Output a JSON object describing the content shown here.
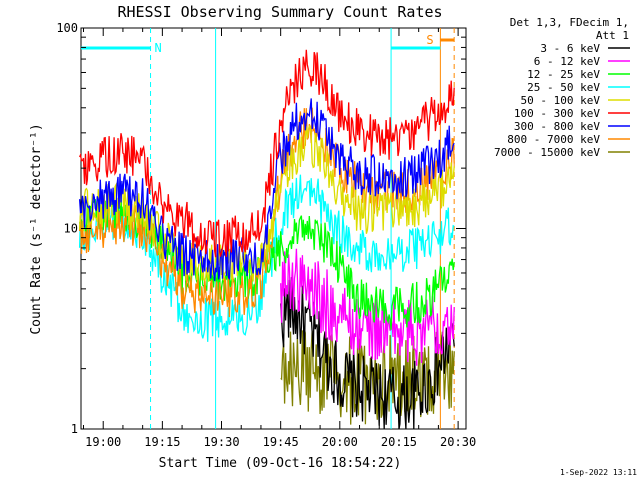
{
  "chart_data": {
    "type": "line",
    "title": "RHESSI Observing Summary Count Rates",
    "xlabel": "Start Time (09-Oct-16 18:54:22)",
    "ylabel": "Count Rate (s⁻¹ detector⁻¹)",
    "yscale": "log",
    "ylim": [
      1,
      100
    ],
    "xlim": [
      "18:54:22",
      "20:32:00"
    ],
    "x_ticks": [
      "19:00",
      "19:15",
      "19:30",
      "19:45",
      "20:00",
      "20:15",
      "20:30"
    ],
    "y_ticks": [
      "1",
      "10",
      "100"
    ],
    "legend": {
      "position": "top-right outside",
      "header_1": "Det 1,3, FDecim 1,",
      "header_2": "Att 1"
    },
    "series": [
      {
        "name": "3 - 6 keV",
        "color": "#000000",
        "x": [
          "19:45",
          "19:47",
          "19:50",
          "19:53",
          "19:56",
          "20:00",
          "20:05",
          "20:10",
          "20:15",
          "20:20",
          "20:25",
          "20:29"
        ],
        "values": [
          3.5,
          4.0,
          3.6,
          3.0,
          2.4,
          1.8,
          1.6,
          1.5,
          1.4,
          1.5,
          2.0,
          3.0
        ]
      },
      {
        "name": "6 - 12 keV",
        "color": "#ff00ff",
        "x": [
          "19:45",
          "19:48",
          "19:52",
          "19:56",
          "20:00",
          "20:05",
          "20:10",
          "20:15",
          "20:20",
          "20:25",
          "20:29"
        ],
        "values": [
          5.0,
          5.8,
          5.2,
          4.3,
          3.7,
          3.2,
          3.1,
          3.0,
          3.1,
          3.4,
          4.0
        ]
      },
      {
        "name": "12 - 25 keV",
        "color": "#00ff00",
        "x": [
          "18:54",
          "19:00",
          "19:05",
          "19:10",
          "19:15",
          "19:20",
          "19:25",
          "19:30",
          "19:35",
          "19:40",
          "19:45",
          "19:48",
          "19:52",
          "19:56",
          "20:00",
          "20:05",
          "20:10",
          "20:15",
          "20:20",
          "20:25",
          "20:29"
        ],
        "values": [
          11,
          12,
          12,
          11,
          8.5,
          6.0,
          5.5,
          5.5,
          5.5,
          6.0,
          8.0,
          9.5,
          10.5,
          8.5,
          6.5,
          4.5,
          4.0,
          4.0,
          4.3,
          5.0,
          6.0
        ]
      },
      {
        "name": "25 - 50 keV",
        "color": "#00ffff",
        "x": [
          "18:54",
          "19:00",
          "19:05",
          "19:10",
          "19:15",
          "19:20",
          "19:25",
          "19:30",
          "19:35",
          "19:40",
          "19:45",
          "19:48",
          "19:52",
          "19:56",
          "20:00",
          "20:05",
          "20:10",
          "20:15",
          "20:20",
          "20:25",
          "20:29"
        ],
        "values": [
          9,
          11,
          11,
          10,
          6,
          4,
          3.5,
          3.5,
          3.6,
          4.5,
          11,
          14,
          16,
          13,
          9.5,
          8,
          7.5,
          7.5,
          8,
          9,
          11
        ]
      },
      {
        "name": "50 - 100 keV",
        "color": "#dddd00",
        "x": [
          "18:54",
          "19:00",
          "19:05",
          "19:10",
          "19:15",
          "19:20",
          "19:25",
          "19:30",
          "19:35",
          "19:40",
          "19:45",
          "19:48",
          "19:52",
          "19:56",
          "20:00",
          "20:05",
          "20:10",
          "20:15",
          "20:20",
          "20:25",
          "20:29"
        ],
        "values": [
          12,
          13,
          13,
          12,
          9,
          7,
          6.5,
          6.5,
          6.5,
          7,
          15,
          22,
          28,
          22,
          15,
          12,
          12,
          12,
          13,
          15,
          18
        ]
      },
      {
        "name": "100 - 300 keV",
        "color": "#ff0000",
        "x": [
          "18:54",
          "19:00",
          "19:05",
          "19:10",
          "19:15",
          "19:20",
          "19:25",
          "19:30",
          "19:35",
          "19:40",
          "19:45",
          "19:48",
          "19:52",
          "19:56",
          "20:00",
          "20:05",
          "20:10",
          "20:15",
          "20:20",
          "20:25",
          "20:29"
        ],
        "values": [
          18,
          22,
          24,
          22,
          13,
          11,
          9.5,
          9.0,
          9.0,
          10,
          35,
          52,
          68,
          55,
          38,
          30,
          28,
          28,
          31,
          38,
          50
        ]
      },
      {
        "name": "300 - 800 keV",
        "color": "#0000ff",
        "x": [
          "18:54",
          "19:00",
          "19:05",
          "19:10",
          "19:15",
          "19:20",
          "19:25",
          "19:30",
          "19:35",
          "19:40",
          "19:45",
          "19:48",
          "19:52",
          "19:56",
          "20:00",
          "20:05",
          "20:10",
          "20:15",
          "20:20",
          "20:25",
          "20:29"
        ],
        "values": [
          12,
          14,
          15,
          14,
          9,
          7.5,
          7.0,
          7.0,
          7.0,
          7.5,
          22,
          32,
          38,
          32,
          23,
          19,
          18,
          18,
          19,
          22,
          27
        ]
      },
      {
        "name": "800 - 7000 keV",
        "color": "#ff8800",
        "x": [
          "18:54",
          "19:00",
          "19:05",
          "19:10",
          "19:15",
          "19:20",
          "19:25",
          "19:30",
          "19:35",
          "19:40",
          "19:45",
          "19:48",
          "19:52",
          "19:56",
          "20:00",
          "20:05",
          "20:10",
          "20:15",
          "20:20",
          "20:25",
          "20:29"
        ],
        "values": [
          9,
          10,
          11,
          10,
          7,
          5,
          4.5,
          4.5,
          4.5,
          5,
          18,
          27,
          33,
          27,
          20,
          16,
          15,
          15,
          16,
          19,
          23
        ]
      },
      {
        "name": "7000 - 15000 keV",
        "color": "#808000",
        "x": [
          "19:45",
          "19:50",
          "19:55",
          "20:00",
          "20:05",
          "20:10",
          "20:15",
          "20:20",
          "20:25",
          "20:29"
        ],
        "values": [
          1.8,
          2.0,
          1.9,
          1.8,
          1.7,
          1.7,
          1.8,
          1.8,
          1.9,
          2.0
        ]
      }
    ],
    "annotations": [
      {
        "label": "N",
        "color": "#00ffff",
        "from": "18:54:22",
        "to": "19:12:00"
      },
      {
        "label": "S",
        "color": "#ff8800",
        "from": "20:25:30",
        "to": "20:29:00"
      }
    ],
    "vertical_lines": [
      {
        "x": "19:12:00",
        "color": "#00ffff",
        "style": "dashed"
      },
      {
        "x": "19:28:30",
        "color": "#00ffff",
        "style": "solid"
      },
      {
        "x": "20:13:00",
        "color": "#00ffff",
        "style": "solid"
      },
      {
        "x": "20:25:30",
        "color": "#ff8800",
        "style": "solid"
      },
      {
        "x": "20:29:00",
        "color": "#ff8800",
        "style": "dashed"
      }
    ],
    "cyan_segment_upper_right": {
      "from": "20:13:00",
      "to": "20:25:30"
    }
  },
  "footer": {
    "timestamp": "1-Sep-2022 13:11"
  }
}
